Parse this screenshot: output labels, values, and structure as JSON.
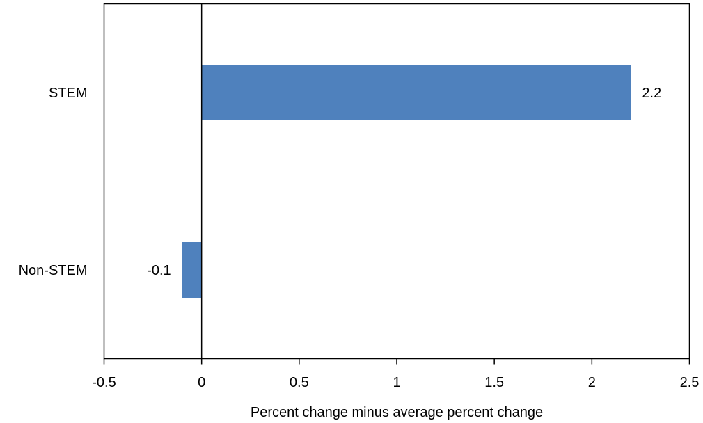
{
  "chart_data": {
    "type": "bar",
    "orientation": "horizontal",
    "categories": [
      "STEM",
      "Non-STEM"
    ],
    "values": [
      2.2,
      -0.1
    ],
    "data_labels": [
      "2.2",
      "-0.1"
    ],
    "title": "",
    "xlabel": "Percent change minus average percent change",
    "ylabel": "",
    "xlim": [
      -0.5,
      2.5
    ],
    "x_ticks": [
      -0.5,
      0,
      0.5,
      1,
      1.5,
      2,
      2.5
    ],
    "x_tick_labels": [
      "-0.5",
      "0",
      "0.5",
      "1",
      "1.5",
      "2",
      "2.5"
    ],
    "grid": false,
    "legend": "none",
    "bar_color": "#4f81bd",
    "axis_color": "#000000"
  }
}
